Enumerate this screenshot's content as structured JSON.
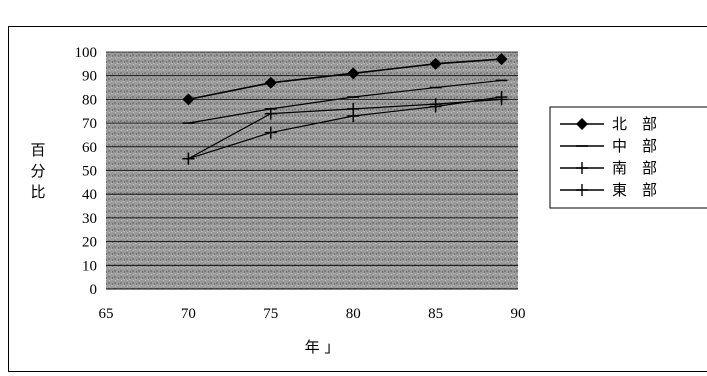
{
  "chart_data": {
    "type": "line",
    "title": "",
    "xlabel": "年 」",
    "ylabel": "百分比",
    "xlim": [
      65,
      90
    ],
    "ylim": [
      0,
      100
    ],
    "xticks": [
      65,
      70,
      75,
      80,
      85,
      90
    ],
    "yticks": [
      0,
      10,
      20,
      30,
      40,
      50,
      60,
      70,
      80,
      90,
      100
    ],
    "grid": true,
    "legend_position": "right",
    "plot_background": "#9a9a9a",
    "series": [
      {
        "name": "北　部",
        "marker": "diamond",
        "color": "#000000",
        "x": [
          70,
          75,
          80,
          85,
          89
        ],
        "y": [
          80,
          87,
          91,
          95,
          97
        ]
      },
      {
        "name": "中　部",
        "marker": "dash",
        "color": "#000000",
        "x": [
          70,
          75,
          80,
          85,
          89
        ],
        "y": [
          70,
          76,
          81,
          85,
          88
        ]
      },
      {
        "name": "南　部",
        "marker": "plus",
        "color": "#000000",
        "x": [
          70,
          75,
          80,
          85,
          89
        ],
        "y": [
          55,
          74,
          76,
          78,
          80
        ]
      },
      {
        "name": "東　部",
        "marker": "plus",
        "color": "#000000",
        "x": [
          70,
          75,
          80,
          85,
          89
        ],
        "y": [
          55,
          66,
          73,
          77,
          81
        ]
      }
    ]
  }
}
